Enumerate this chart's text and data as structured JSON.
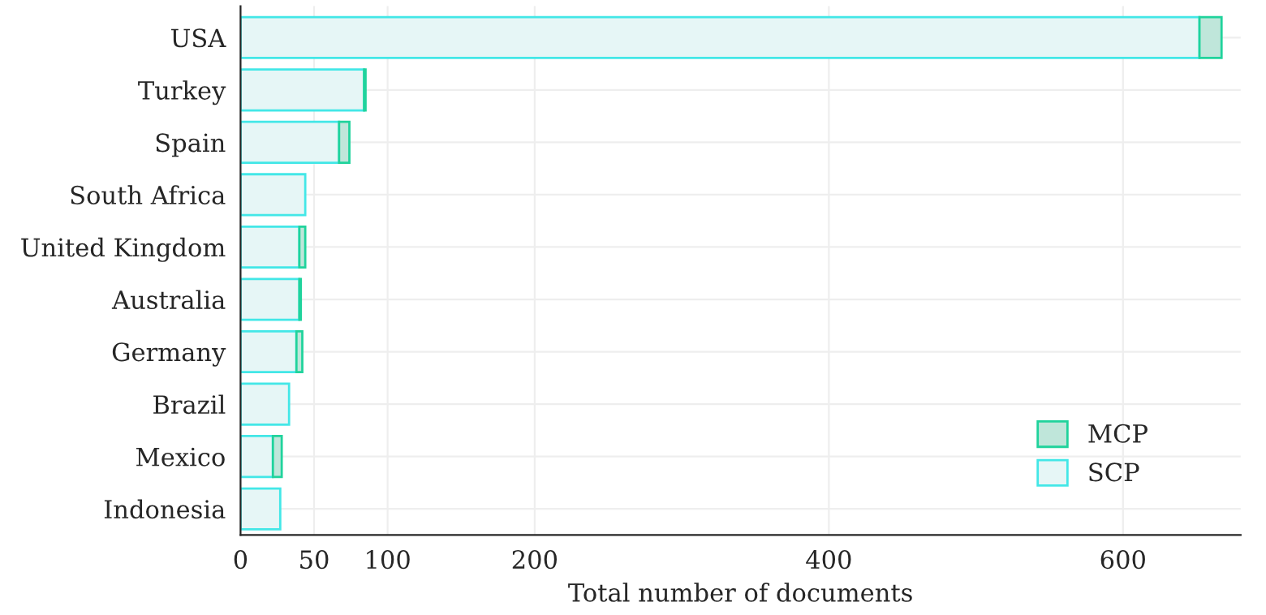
{
  "chart_data": {
    "type": "bar",
    "orientation": "horizontal",
    "stacked": true,
    "categories": [
      "USA",
      "Turkey",
      "Spain",
      "South Africa",
      "United Kingdom",
      "Australia",
      "Germany",
      "Brazil",
      "Mexico",
      "Indonesia"
    ],
    "series": [
      {
        "name": "SCP",
        "color": "#e6f6f6",
        "values": [
          652,
          84,
          67,
          44,
          40,
          40,
          38,
          33,
          22,
          27
        ]
      },
      {
        "name": "MCP",
        "color": "#bfe6da",
        "values": [
          15,
          1,
          7,
          null,
          4,
          1,
          4,
          null,
          6,
          null
        ]
      }
    ],
    "xlabel": "Total number of documents",
    "xlim": [
      0,
      680
    ],
    "xticks": [
      0,
      50,
      100,
      200,
      400,
      600
    ],
    "grid": true,
    "legend": "bottom right"
  }
}
